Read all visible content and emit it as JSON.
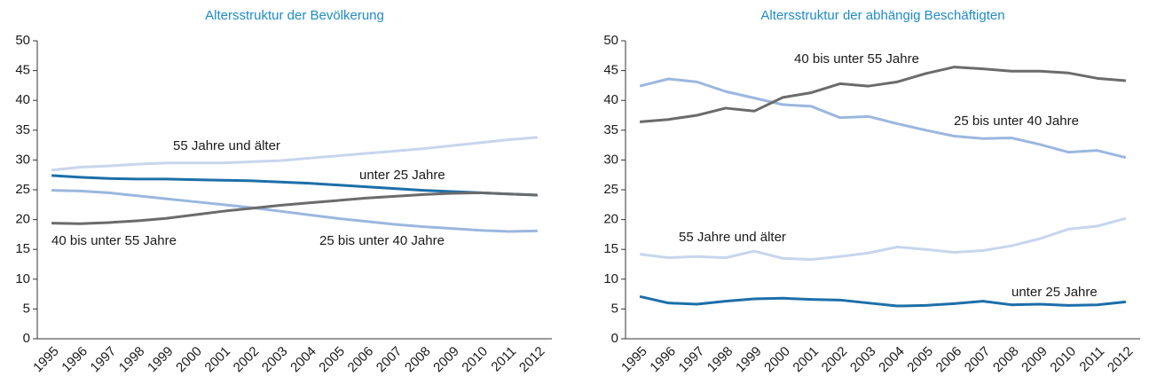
{
  "chart_data": [
    {
      "type": "line",
      "title": "Altersstruktur der Bevölkerung",
      "categories": [
        "1995",
        "1996",
        "1997",
        "1998",
        "1999",
        "2000",
        "2001",
        "2002",
        "2003",
        "2004",
        "2005",
        "2006",
        "2007",
        "2008",
        "2009",
        "2010",
        "2011",
        "2012"
      ],
      "ylim": [
        0,
        50
      ],
      "yticks": [
        0,
        5,
        10,
        15,
        20,
        25,
        30,
        35,
        40,
        45,
        50
      ],
      "series": [
        {
          "name": "unter 25 Jahre",
          "color": "#1c6fa9",
          "values": [
            27.4,
            27.1,
            26.9,
            26.8,
            26.8,
            26.7,
            26.6,
            26.5,
            26.3,
            26.1,
            25.8,
            25.5,
            25.2,
            24.9,
            24.7,
            24.5,
            24.3,
            24.1
          ]
        },
        {
          "name": "25 bis unter 40 Jahre",
          "color": "#9ab7df",
          "values": [
            24.9,
            24.8,
            24.5,
            24.0,
            23.5,
            23.0,
            22.5,
            22.0,
            21.4,
            20.8,
            20.2,
            19.7,
            19.2,
            18.8,
            18.5,
            18.2,
            18.0,
            18.1
          ]
        },
        {
          "name": "40 bis unter 55 Jahre",
          "color": "#6b6b6b",
          "values": [
            19.4,
            19.3,
            19.5,
            19.8,
            20.2,
            20.8,
            21.4,
            21.9,
            22.4,
            22.8,
            23.2,
            23.6,
            23.9,
            24.2,
            24.4,
            24.5,
            24.3,
            24.1
          ]
        },
        {
          "name": "55 Jahre und älter",
          "color": "#c8d5ec",
          "values": [
            28.3,
            28.8,
            29.0,
            29.3,
            29.5,
            29.5,
            29.5,
            29.7,
            29.9,
            30.3,
            30.7,
            31.1,
            31.5,
            31.9,
            32.4,
            32.9,
            33.4,
            33.8
          ]
        }
      ]
    },
    {
      "type": "line",
      "title": "Altersstruktur der abhängig Beschäftigten",
      "categories": [
        "1995",
        "1996",
        "1997",
        "1998",
        "1999",
        "2000",
        "2001",
        "2002",
        "2003",
        "2004",
        "2005",
        "2006",
        "2007",
        "2008",
        "2009",
        "2010",
        "2011",
        "2012"
      ],
      "ylim": [
        0,
        50
      ],
      "yticks": [
        0,
        5,
        10,
        15,
        20,
        25,
        30,
        35,
        40,
        45,
        50
      ],
      "series": [
        {
          "name": "unter 25 Jahre",
          "color": "#1c6fa9",
          "values": [
            7.1,
            6.0,
            5.8,
            6.3,
            6.7,
            6.8,
            6.6,
            6.5,
            6.0,
            5.5,
            5.6,
            5.9,
            6.3,
            5.7,
            5.8,
            5.6,
            5.7,
            6.2
          ]
        },
        {
          "name": "25 bis unter 40 Jahre",
          "color": "#9ab7df",
          "values": [
            42.4,
            43.6,
            43.1,
            41.5,
            40.4,
            39.3,
            39.0,
            37.1,
            37.3,
            36.1,
            35.0,
            34.0,
            33.6,
            33.7,
            32.6,
            31.3,
            31.6,
            30.4
          ]
        },
        {
          "name": "40 bis unter 55 Jahre",
          "color": "#6b6b6b",
          "values": [
            36.4,
            36.8,
            37.5,
            38.7,
            38.2,
            40.5,
            41.3,
            42.8,
            42.4,
            43.1,
            44.5,
            45.6,
            45.3,
            44.9,
            44.9,
            44.6,
            43.7,
            43.3
          ]
        },
        {
          "name": "55 Jahre und älter",
          "color": "#c8d5ec",
          "values": [
            14.2,
            13.6,
            13.8,
            13.6,
            14.7,
            13.5,
            13.3,
            13.8,
            14.4,
            15.4,
            15.0,
            14.5,
            14.8,
            15.6,
            16.8,
            18.4,
            18.9,
            20.2
          ]
        }
      ]
    }
  ]
}
